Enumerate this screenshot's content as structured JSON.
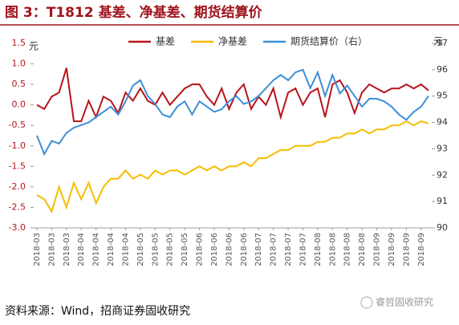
{
  "chart_data": {
    "type": "line",
    "title": "图 3：T1812 基差、净基差、期货结算价",
    "ylabel": "元",
    "y2label": "元",
    "ylim": [
      -3,
      1.5
    ],
    "yticks": [
      {
        "value": 1.5,
        "label": "1.5"
      },
      {
        "value": 1,
        "label": "1.0"
      },
      {
        "value": 0.5,
        "label": "0.5"
      },
      {
        "value": 0,
        "label": "0.0"
      },
      {
        "value": -0.5,
        "label": "-0.5"
      },
      {
        "value": -1,
        "label": "-1.0"
      },
      {
        "value": -1.5,
        "label": "-1.5"
      },
      {
        "value": -2,
        "label": "-2.0"
      },
      {
        "value": -2.5,
        "label": "-2.5"
      },
      {
        "value": -3,
        "label": "-3.0"
      }
    ],
    "y2lim": [
      90,
      97
    ],
    "y2ticks": [
      90,
      91,
      92,
      93,
      94,
      95,
      96,
      97
    ],
    "categories": [
      "2018-03",
      null,
      "2018-03",
      null,
      "2018-03",
      null,
      "2018-04",
      null,
      "2018-04",
      null,
      "2018-04",
      null,
      "2018-04",
      null,
      "2018-05",
      null,
      "2018-05",
      null,
      "2018-05",
      null,
      "2018-05",
      null,
      "2018-06",
      null,
      "2018-06",
      null,
      "2018-06",
      null,
      "2018-06",
      null,
      "2018-07",
      null,
      "2018-07",
      null,
      "2018-07",
      null,
      "2018-07",
      null,
      "2018-08",
      null,
      "2018-08",
      null,
      "2018-08",
      null,
      "2018-08",
      null,
      "2018-09",
      null,
      "2018-09",
      null,
      "2018-09",
      null,
      "2018-09",
      null
    ],
    "series": [
      {
        "name": "基差",
        "color": "#b8141b",
        "values": [
          0.0,
          -0.1,
          0.2,
          0.3,
          0.9,
          -0.4,
          -0.4,
          0.1,
          -0.3,
          0.2,
          0.1,
          -0.2,
          0.3,
          0.1,
          0.4,
          0.1,
          0.0,
          0.3,
          0.0,
          0.2,
          0.4,
          0.5,
          0.5,
          0.2,
          0.0,
          0.4,
          -0.1,
          0.3,
          0.5,
          -0.1,
          0.2,
          0.0,
          0.4,
          -0.3,
          0.3,
          0.4,
          0.0,
          0.3,
          0.4,
          -0.3,
          0.5,
          0.6,
          0.3,
          -0.2,
          0.3,
          0.5,
          0.4,
          0.3,
          0.4,
          0.4,
          0.5,
          0.4,
          0.5,
          0.35
        ]
      },
      {
        "name": "净基差",
        "color": "#f5bd00",
        "values": [
          -2.2,
          -2.3,
          -2.6,
          -2.0,
          -2.5,
          -1.9,
          -2.3,
          -1.9,
          -2.4,
          -2.0,
          -1.8,
          -1.8,
          -1.6,
          -1.8,
          -1.7,
          -1.8,
          -1.6,
          -1.7,
          -1.6,
          -1.6,
          -1.7,
          -1.6,
          -1.5,
          -1.6,
          -1.5,
          -1.6,
          -1.5,
          -1.5,
          -1.4,
          -1.5,
          -1.3,
          -1.3,
          -1.2,
          -1.1,
          -1.1,
          -1.0,
          -1.0,
          -1.0,
          -0.9,
          -0.9,
          -0.8,
          -0.8,
          -0.7,
          -0.7,
          -0.6,
          -0.7,
          -0.6,
          -0.6,
          -0.5,
          -0.5,
          -0.4,
          -0.5,
          -0.4,
          -0.45
        ]
      },
      {
        "name": "期货结算价（右）",
        "color": "#3d8fd9",
        "axis": "y2",
        "values": [
          93.5,
          92.8,
          93.3,
          93.2,
          93.6,
          93.8,
          93.9,
          94.0,
          94.2,
          94.4,
          94.6,
          94.3,
          94.8,
          95.4,
          95.6,
          95.0,
          94.7,
          94.3,
          94.2,
          94.6,
          94.8,
          94.3,
          94.8,
          94.6,
          94.4,
          94.5,
          94.8,
          95.0,
          94.7,
          94.8,
          95.0,
          95.3,
          95.6,
          95.8,
          95.6,
          95.9,
          96.0,
          95.3,
          95.9,
          95.0,
          95.8,
          95.1,
          95.4,
          95.0,
          94.6,
          94.9,
          94.9,
          94.8,
          94.6,
          94.3,
          94.1,
          94.4,
          94.6,
          95.0
        ]
      }
    ],
    "source": "资料来源：Wind，招商证券固收研究",
    "watermark": "睿哲固收研究"
  }
}
